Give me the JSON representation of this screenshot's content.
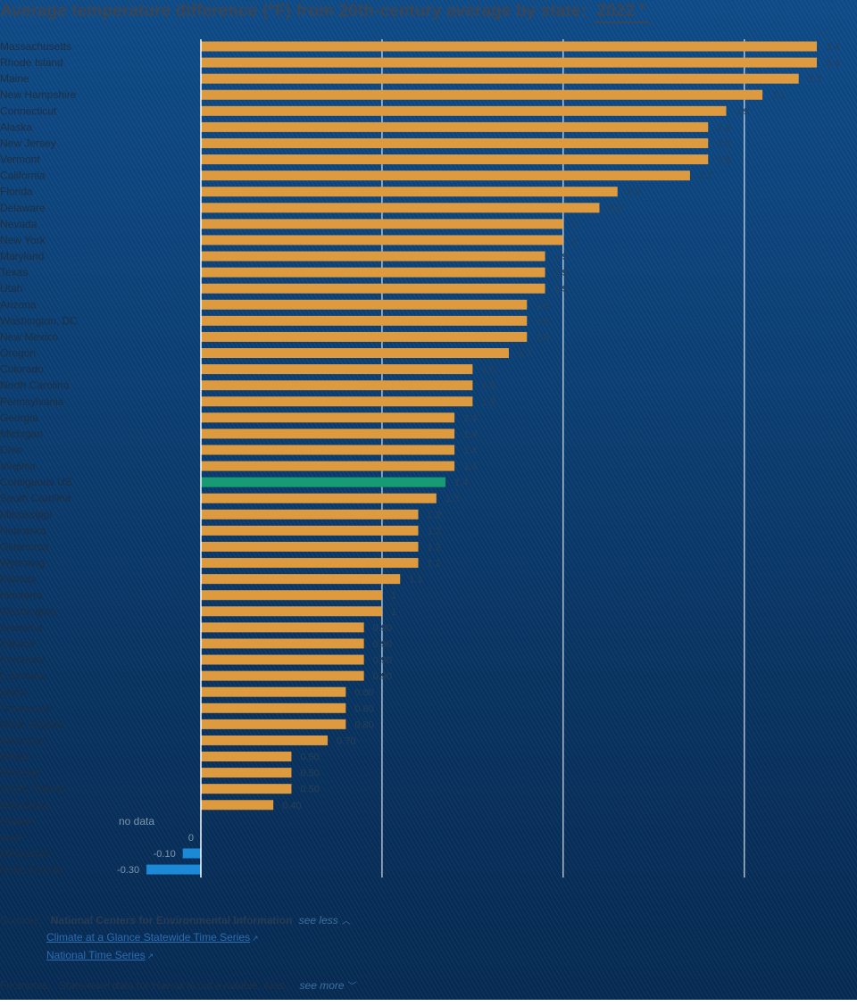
{
  "header": {
    "title": "Average temperature difference (°F) from 20th-century average by state:",
    "year": "2022"
  },
  "colors": {
    "positive": "#de9a3f",
    "negative": "#1c89d6",
    "highlight": "#169b73",
    "gridline": "#ffffff"
  },
  "chart_data": {
    "type": "bar",
    "orientation": "horizontal",
    "xlim": [
      0,
      3.4
    ],
    "grid": true,
    "categories": [
      "Massachusetts",
      "Rhode Island",
      "Maine",
      "New Hampshire",
      "Connecticut",
      "Alaska",
      "New Jersey",
      "Vermont",
      "California",
      "Florida",
      "Delaware",
      "Nevada",
      "New York",
      "Maryland",
      "Texas",
      "Utah",
      "Arizona",
      "Washington, DC",
      "New Mexico",
      "Oregon",
      "Colorado",
      "North Carolina",
      "Pennsylvania",
      "Georgia",
      "Michigan",
      "Ohio",
      "Virginia",
      "Contiguous US",
      "South Carolina",
      "Mississippi",
      "Nebraska",
      "Oklahoma",
      "Wyoming",
      "Kansas",
      "Montana",
      "Washington",
      "Alabama",
      "Indiana",
      "Kentucky",
      "Louisiana",
      "Idaho",
      "Tennessee",
      "West Virginia",
      "Arkansas",
      "Illinois",
      "Missouri",
      "South Dakota",
      "Wisconsin",
      "Hawaii",
      "Iowa",
      "Minnesota",
      "North Dakota"
    ],
    "values": [
      3.4,
      3.4,
      3.3,
      3.1,
      2.9,
      2.8,
      2.8,
      2.8,
      2.7,
      2.3,
      2.2,
      2,
      2,
      1.9,
      1.9,
      1.9,
      1.8,
      1.8,
      1.8,
      1.7,
      1.5,
      1.5,
      1.5,
      1.4,
      1.4,
      1.4,
      1.4,
      1.35,
      1.3,
      1.2,
      1.2,
      1.2,
      1.2,
      1.1,
      1,
      1,
      0.9,
      0.9,
      0.9,
      0.9,
      0.8,
      0.8,
      0.8,
      0.7,
      0.5,
      0.5,
      0.5,
      0.4,
      null,
      0,
      -0.1,
      -0.3
    ],
    "value_labels": [
      "3.4",
      "3.4",
      "3.3",
      "3.1",
      "2.9",
      "2.8",
      "2.8",
      "2.8",
      "2.7",
      "2.3",
      "2.2",
      "2",
      "2",
      "1.9",
      "1.9",
      "1.9",
      "1.8",
      "1.8",
      "1.8",
      "1.7",
      "1.5",
      "1.5",
      "1.5",
      "1.4",
      "1.4",
      "1.4",
      "1.4",
      "1.4",
      "1.3",
      "1.2",
      "1.2",
      "1.2",
      "1.2",
      "1.1",
      "1",
      "1",
      "0.90",
      "0.90",
      "0.90",
      "0.90",
      "0.80",
      "0.80",
      "0.80",
      "0.70",
      "0.50",
      "0.50",
      "0.50",
      "0.40",
      "no data",
      "0",
      "-0.10",
      "-0.30"
    ],
    "highlight_category": "Contiguous US"
  },
  "sources": {
    "label": "Sources:",
    "main": "National Centers for Environmental Information",
    "toggle": "see less",
    "links": [
      "Climate at a Glance Statewide Time Series",
      "National Time Series"
    ]
  },
  "footnotes": {
    "label": "Footnotes:",
    "text": "State-level data for Hawaii is not available. Alas...",
    "toggle": "see more"
  }
}
